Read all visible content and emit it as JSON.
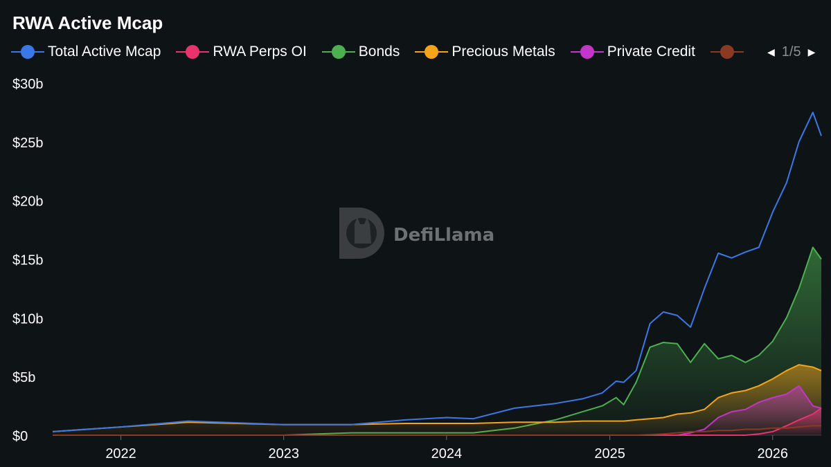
{
  "chart_data": {
    "type": "area",
    "title": "RWA Active Mcap",
    "watermark": "DefiLlama",
    "legend_position": "top-left",
    "legend_page": "1/5",
    "grid": false,
    "x_ticks": [
      "2022",
      "2023",
      "2024",
      "2025",
      "2026"
    ],
    "y_ticks": [
      "$0",
      "$5b",
      "$10b",
      "$15b",
      "$20b",
      "$25b",
      "$30b"
    ],
    "ylim": [
      0,
      30
    ],
    "xlim": [
      "2021-08-01",
      "2026-04-20"
    ],
    "x": [
      "2021-08-01",
      "2022-01-01",
      "2022-06-01",
      "2023-01-01",
      "2023-06-01",
      "2023-10-01",
      "2024-01-01",
      "2024-03-01",
      "2024-06-01",
      "2024-09-01",
      "2024-11-01",
      "2024-12-15",
      "2025-01-15",
      "2025-02-01",
      "2025-03-01",
      "2025-04-01",
      "2025-05-01",
      "2025-06-01",
      "2025-07-01",
      "2025-08-01",
      "2025-09-01",
      "2025-10-01",
      "2025-11-01",
      "2025-12-01",
      "2026-01-01",
      "2026-02-01",
      "2026-03-01",
      "2026-04-01",
      "2026-04-20"
    ],
    "series": [
      {
        "name": "Total Active Mcap",
        "color": "#3b78e7",
        "fill": false,
        "values": [
          0.3,
          0.7,
          1.2,
          0.9,
          0.9,
          1.3,
          1.5,
          1.4,
          2.3,
          2.7,
          3.1,
          3.6,
          4.6,
          4.5,
          5.5,
          9.5,
          10.5,
          10.2,
          9.2,
          12.5,
          15.5,
          15.1,
          15.6,
          16.0,
          19.0,
          21.5,
          25.0,
          27.5,
          25.5
        ]
      },
      {
        "name": "RWA Perps OI",
        "color": "#e8336d",
        "fill": true,
        "values": [
          0,
          0,
          0,
          0,
          0,
          0,
          0,
          0,
          0,
          0,
          0,
          0,
          0,
          0,
          0,
          0,
          0,
          0,
          0,
          0,
          0,
          0,
          0,
          0.1,
          0.3,
          0.8,
          1.3,
          1.8,
          2.3
        ]
      },
      {
        "name": "Bonds",
        "color": "#4caf50",
        "fill": true,
        "values": [
          0,
          0,
          0,
          0,
          0.2,
          0.2,
          0.2,
          0.2,
          0.6,
          1.3,
          2.0,
          2.5,
          3.2,
          2.6,
          4.5,
          7.5,
          7.9,
          7.8,
          6.2,
          7.8,
          6.5,
          6.8,
          6.2,
          6.8,
          8.0,
          10.0,
          12.5,
          16.0,
          15.0
        ]
      },
      {
        "name": "Precious Metals",
        "color": "#f5a31a",
        "fill": true,
        "values": [
          0.3,
          0.7,
          1.1,
          0.9,
          0.9,
          1.0,
          1.0,
          1.0,
          1.1,
          1.1,
          1.2,
          1.2,
          1.2,
          1.2,
          1.3,
          1.4,
          1.5,
          1.8,
          1.9,
          2.2,
          3.2,
          3.6,
          3.8,
          4.2,
          4.8,
          5.5,
          6.0,
          5.8,
          5.5
        ]
      },
      {
        "name": "Private Credit",
        "color": "#c236c9",
        "fill": true,
        "values": [
          0,
          0,
          0,
          0,
          0,
          0,
          0,
          0,
          0,
          0,
          0,
          0,
          0,
          0,
          0,
          0,
          0,
          0,
          0.2,
          0.5,
          1.5,
          2.0,
          2.2,
          2.8,
          3.2,
          3.5,
          4.2,
          2.5,
          2.3
        ]
      },
      {
        "name": "",
        "color": "#8a3a22",
        "fill": false,
        "values": [
          0,
          0,
          0,
          0,
          0,
          0,
          0,
          0,
          0,
          0,
          0,
          0,
          0,
          0,
          0,
          0.05,
          0.1,
          0.2,
          0.3,
          0.3,
          0.4,
          0.4,
          0.5,
          0.5,
          0.6,
          0.6,
          0.7,
          0.8,
          0.8
        ]
      }
    ]
  }
}
